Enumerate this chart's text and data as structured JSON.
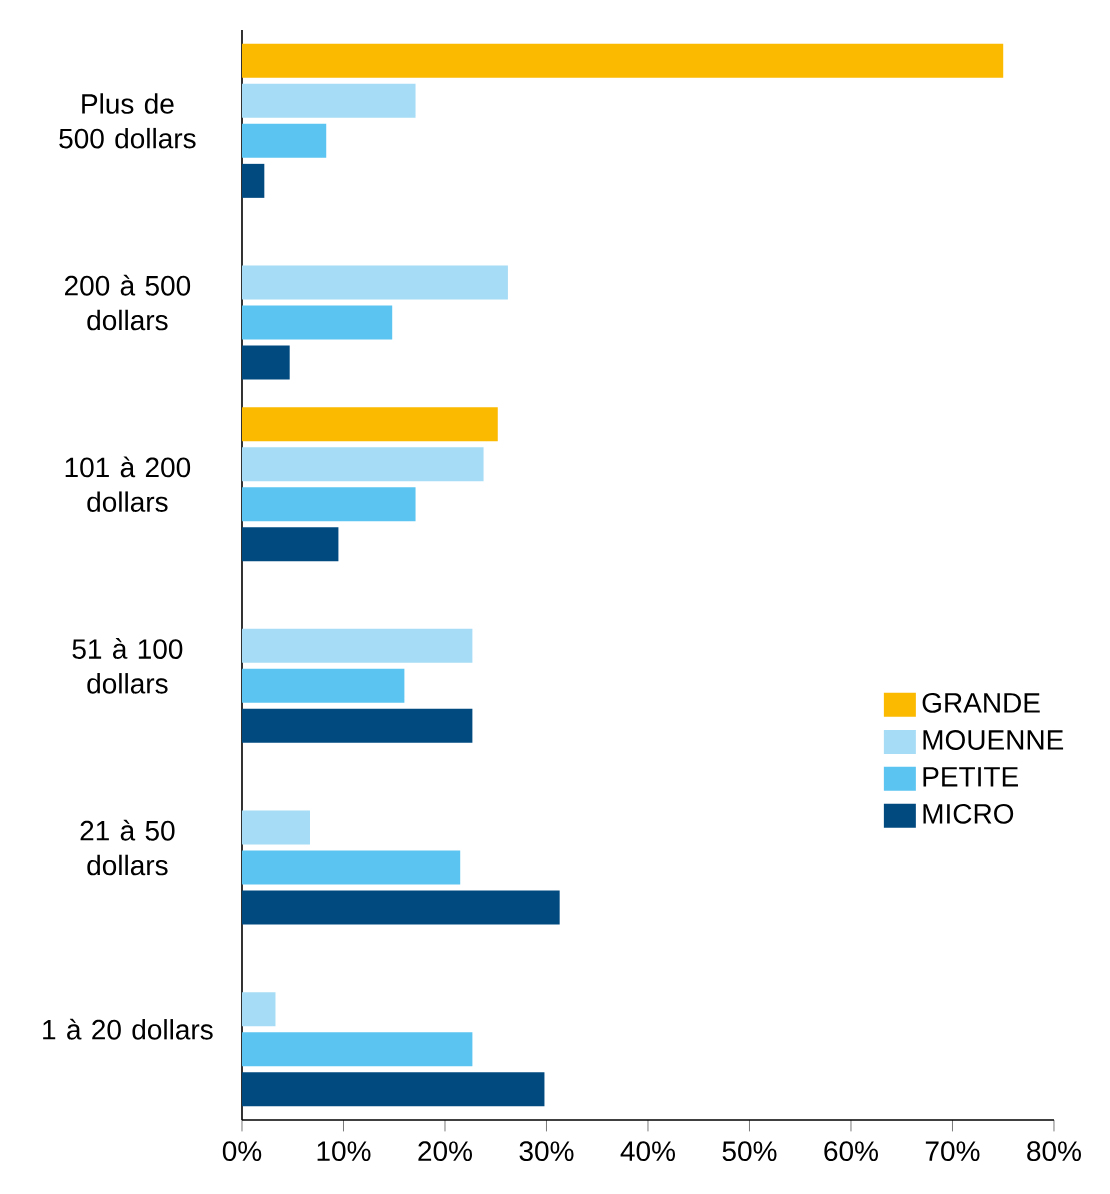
{
  "chart_data": {
    "type": "bar",
    "orientation": "horizontal",
    "categories": [
      "Plus de 500 dollars",
      "200 à 500 dollars",
      "101 à 200 dollars",
      "51 à 100 dollars",
      "21 à 50 dollars",
      "1 à 20 dollars"
    ],
    "series": [
      {
        "name": "GRANDE",
        "color": "#fbb900",
        "values": [
          75,
          null,
          25.2,
          null,
          null,
          null
        ]
      },
      {
        "name": "MOUENNE",
        "color": "#a6dcf5",
        "values": [
          17.1,
          26.2,
          23.8,
          22.7,
          6.7,
          3.3
        ]
      },
      {
        "name": "PETITE",
        "color": "#5bc4f1",
        "values": [
          8.3,
          14.8,
          17.1,
          16,
          21.5,
          22.7
        ]
      },
      {
        "name": "MICRO",
        "color": "#004a80",
        "values": [
          2.2,
          4.7,
          9.5,
          22.7,
          31.3,
          29.8
        ]
      }
    ],
    "xlim": [
      0,
      80
    ],
    "xticks": [
      {
        "value": 0,
        "label": "0%"
      },
      {
        "value": 10,
        "label": "10%"
      },
      {
        "value": 20,
        "label": "20%"
      },
      {
        "value": 30,
        "label": "30%"
      },
      {
        "value": 40,
        "label": "40%"
      },
      {
        "value": 50,
        "label": "50%"
      },
      {
        "value": 60,
        "label": "60%"
      },
      {
        "value": 70,
        "label": "70%"
      },
      {
        "value": 80,
        "label": "80%"
      }
    ],
    "grid": false,
    "legend": "right"
  }
}
